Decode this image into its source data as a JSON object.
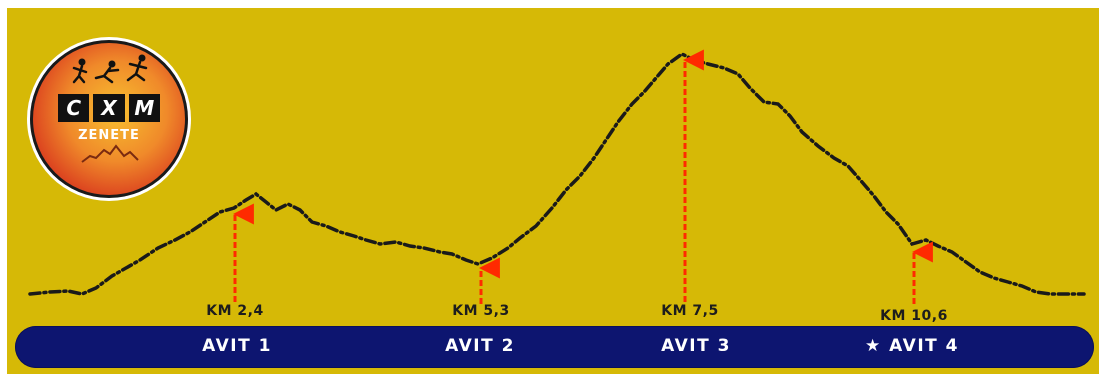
{
  "logo": {
    "letters": [
      "C",
      "X",
      "M"
    ],
    "name": "ZENETE",
    "colors": {
      "outer": "#e0501e",
      "inner": "#f5a82a",
      "ring": "#ffffff"
    }
  },
  "markers": [
    {
      "km_label": "KM 2,4",
      "avit_label": "AVIT 1",
      "star": ""
    },
    {
      "km_label": "KM 5,3",
      "avit_label": "AVIT 2",
      "star": ""
    },
    {
      "km_label": "KM 7,5",
      "avit_label": "AVIT 3",
      "star": ""
    },
    {
      "km_label": "KM 10,6",
      "avit_label": "AVIT 4",
      "star": "★"
    }
  ],
  "colors": {
    "background": "#d6b906",
    "profile_line": "#1a1a1a",
    "marker_arrow": "#ff2a00",
    "band": "#0d1570",
    "text_light": "#ffffff"
  }
}
